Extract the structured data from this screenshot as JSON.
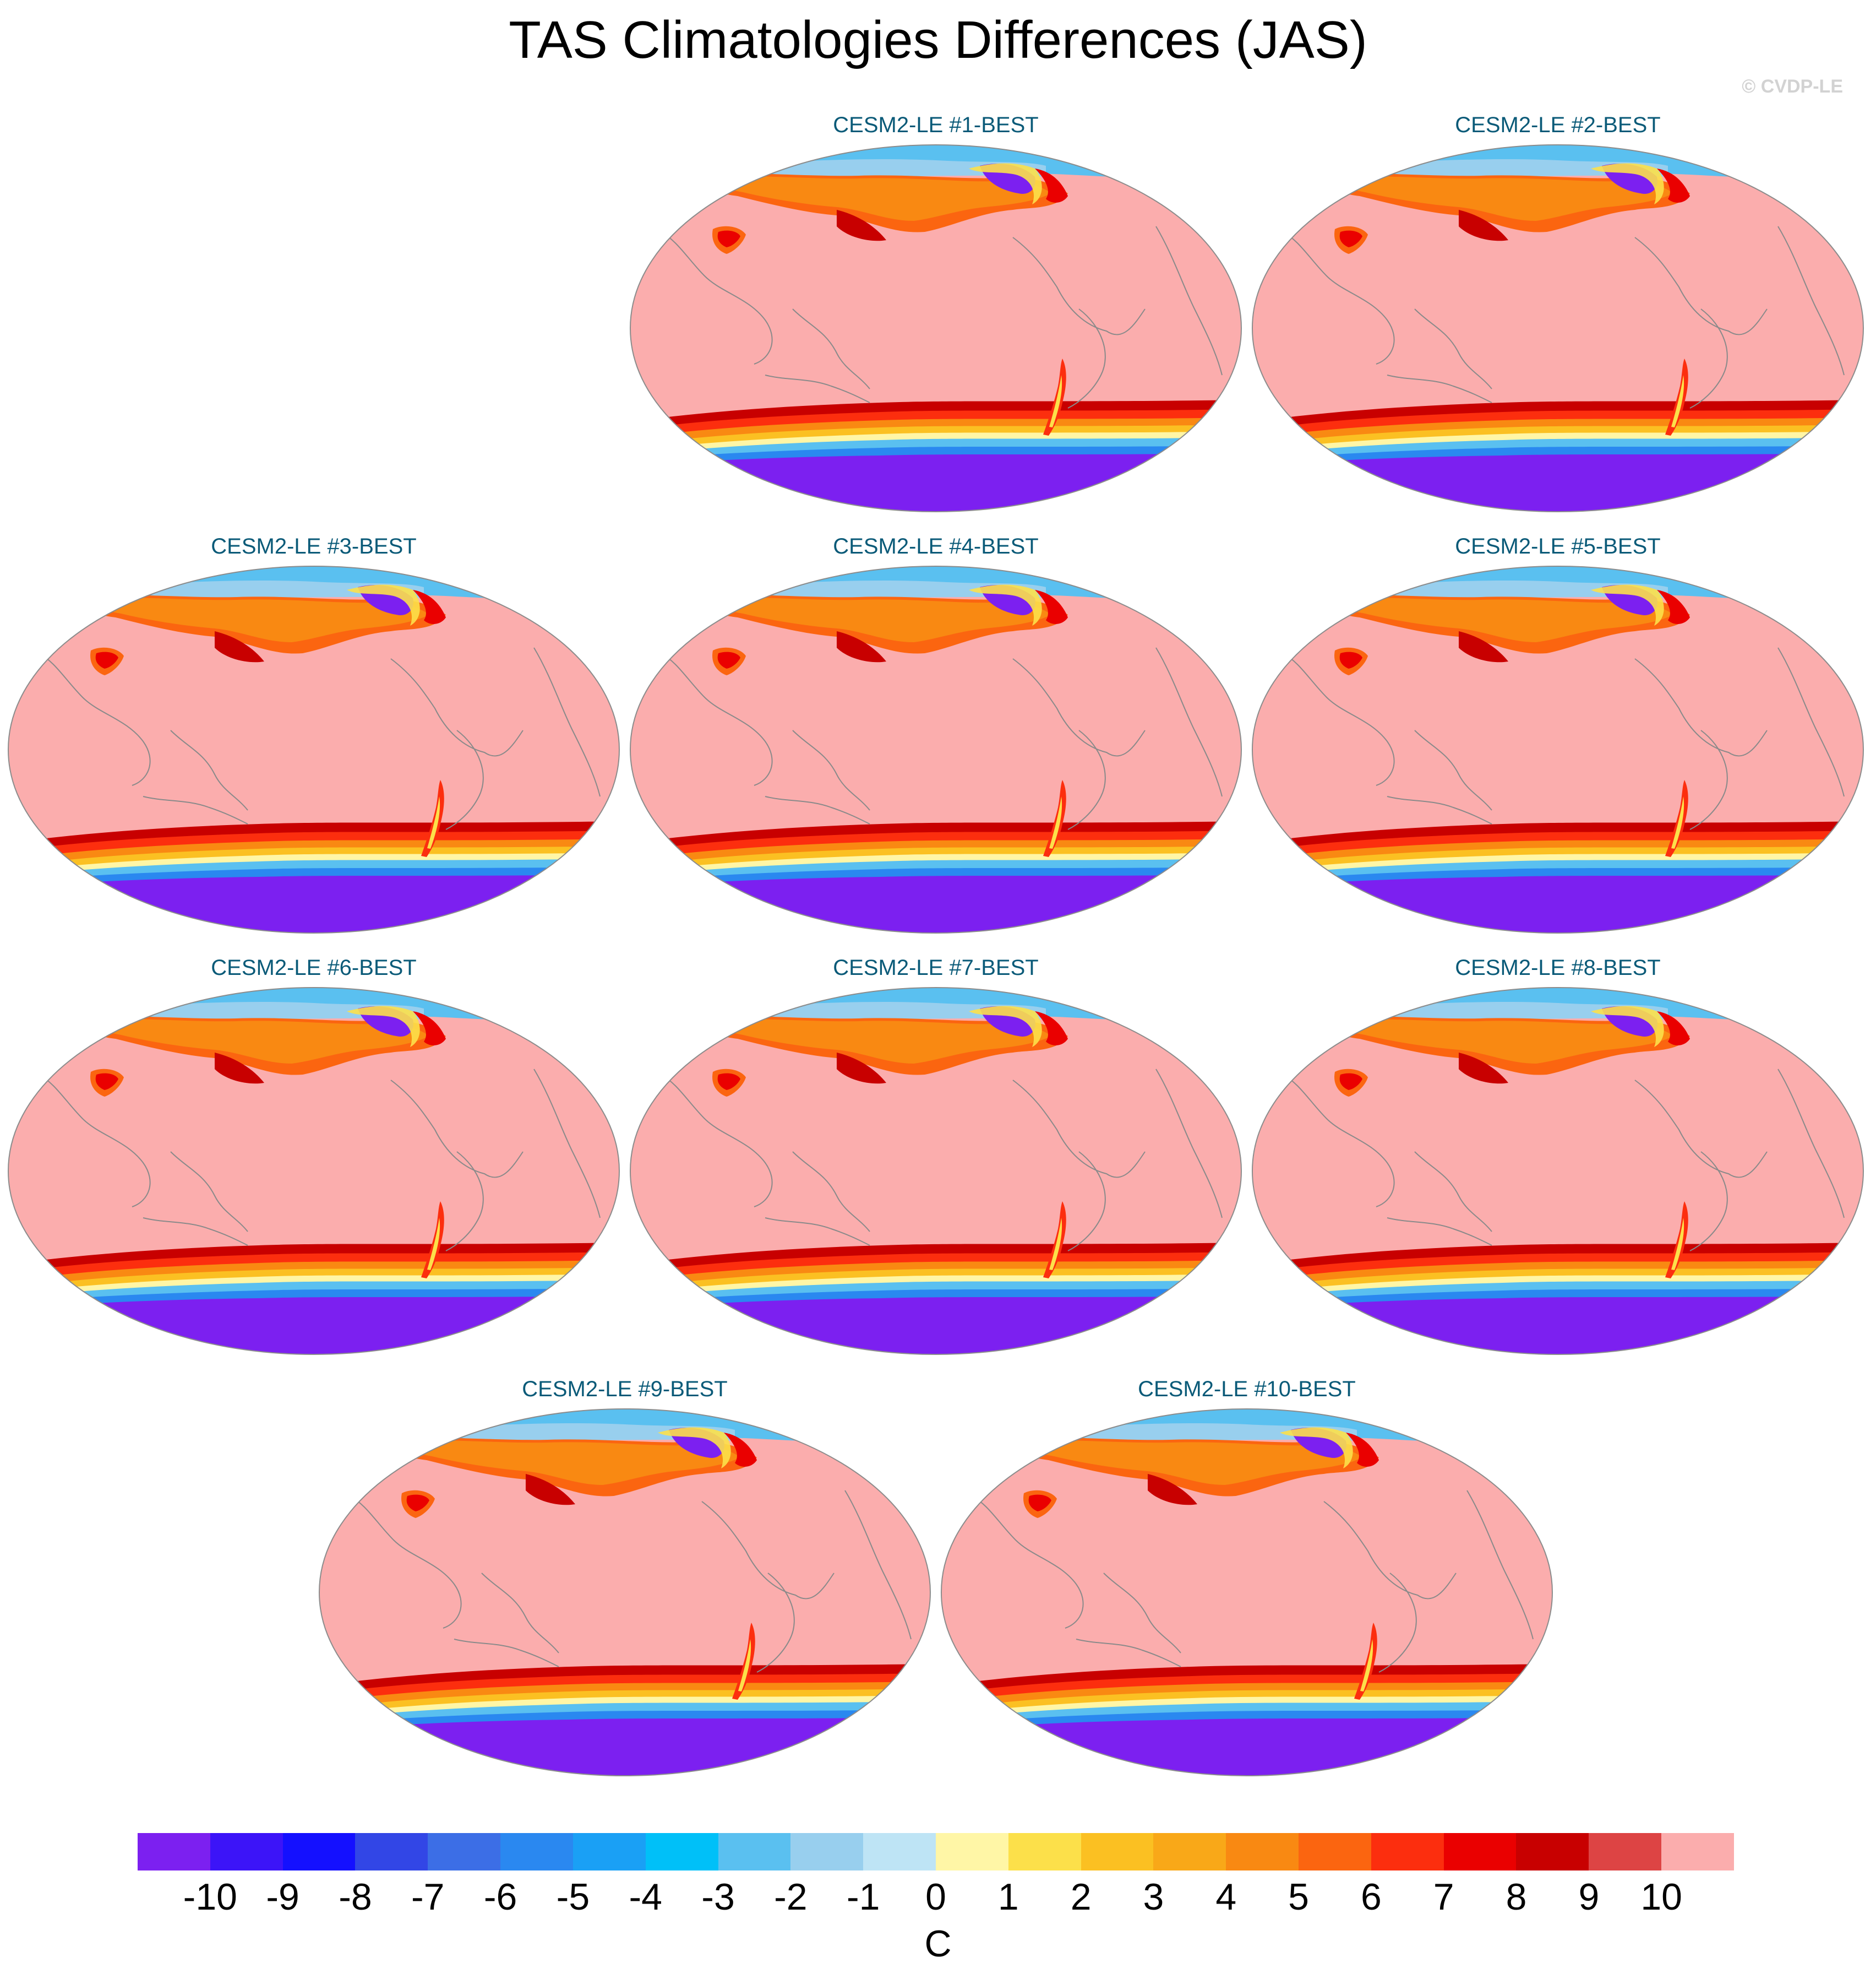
{
  "title": "TAS Climatologies Differences (JAS)",
  "watermark": "© CVDP-LE",
  "panels": [
    {
      "title": "CESM2-LE #1-BEST"
    },
    {
      "title": "CESM2-LE #2-BEST"
    },
    {
      "title": "CESM2-LE #3-BEST"
    },
    {
      "title": "CESM2-LE #4-BEST"
    },
    {
      "title": "CESM2-LE #5-BEST"
    },
    {
      "title": "CESM2-LE #6-BEST"
    },
    {
      "title": "CESM2-LE #7-BEST"
    },
    {
      "title": "CESM2-LE #8-BEST"
    },
    {
      "title": "CESM2-LE #9-BEST"
    },
    {
      "title": "CESM2-LE #10-BEST"
    }
  ],
  "colorbar": {
    "units": "C",
    "labels": [
      "-10",
      "-9",
      "-8",
      "-7",
      "-6",
      "-5",
      "-4",
      "-3",
      "-2",
      "-1",
      "0",
      "1",
      "2",
      "3",
      "4",
      "5",
      "6",
      "7",
      "8",
      "9",
      "10"
    ],
    "colors": [
      "#7c20f0",
      "#3c14f8",
      "#1410ff",
      "#3246e6",
      "#3c6ee6",
      "#2a88f0",
      "#1aa0f5",
      "#00c0f8",
      "#5ac0f0",
      "#98cfee",
      "#bee4f5",
      "#fff6a6",
      "#fce04a",
      "#fbc022",
      "#f9a818",
      "#f98912",
      "#fb6510",
      "#fc2e0e",
      "#ea0000",
      "#c80000",
      "#dd4444",
      "#fbadad"
    ]
  },
  "map_colors": {
    "background": "#fbadad",
    "coastline": "#8a8a8a",
    "antarctic": "#7c20f0",
    "arctic": "#5ac0f0",
    "warm_band": "#ea0000"
  }
}
